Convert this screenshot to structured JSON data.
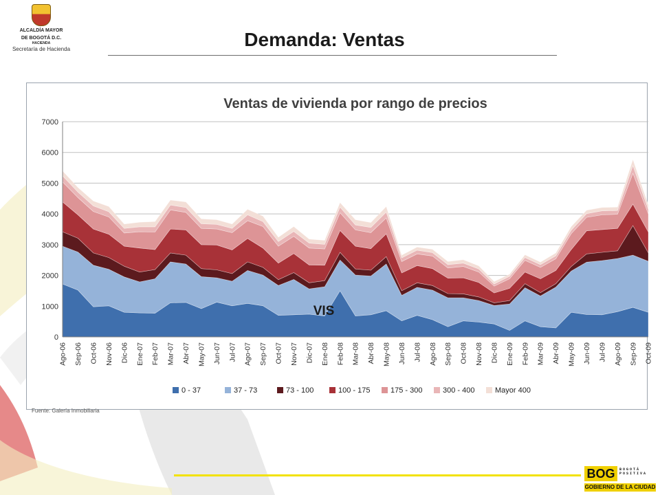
{
  "header": {
    "logo": {
      "line1": "ALCALDÍA MAYOR",
      "line2": "DE BOGOTÁ D.C.",
      "line3": "HACIENDA",
      "line4": "Secretaría de Hacienda"
    },
    "title": "Demanda: Ventas"
  },
  "footer": {
    "source": "Fuente: Galería Inmobiliaria",
    "brand_main": "BOG",
    "brand_side": "BOGOTÁ POSITIVA",
    "brand_sub": "GOBIERNO DE LA CIUDAD"
  },
  "colors": {
    "title_text": "#1a1a1a",
    "accent_yellow": "#f2e200"
  },
  "chart_data": {
    "type": "area",
    "stacked": true,
    "title": "Ventas de vivienda por rango de precios",
    "annotation": "VIS",
    "ylim": [
      0,
      7000
    ],
    "yticks": [
      0,
      1000,
      2000,
      3000,
      4000,
      5000,
      6000,
      7000
    ],
    "grid": true,
    "legend_position": "bottom",
    "categories": [
      "Ago-06",
      "Sep-06",
      "Oct-06",
      "Nov-06",
      "Dic-06",
      "Ene-07",
      "Feb-07",
      "Mar-07",
      "Abr-07",
      "May-07",
      "Jun-07",
      "Jul-07",
      "Ago-07",
      "Sep-07",
      "Oct-07",
      "Nov-07",
      "Dic-07",
      "Ene-08",
      "Feb-08",
      "Mar-08",
      "Abr-08",
      "May-08",
      "Jun-08",
      "Jul-08",
      "Ago-08",
      "Sep-08",
      "Oct-08",
      "Nov-08",
      "Dic-08",
      "Ene-09",
      "Feb-09",
      "Mar-09",
      "Abr-09",
      "May-09",
      "Jun-09",
      "Jul-09",
      "Ago-09",
      "Sep-09",
      "Oct-09"
    ],
    "x_tick_indices": [
      0,
      1,
      2,
      3,
      4,
      5,
      6,
      7,
      8,
      9,
      10,
      11,
      12,
      13,
      14,
      15,
      16,
      17,
      18,
      19,
      20,
      21,
      22,
      23,
      24,
      25,
      26,
      27,
      28,
      29,
      30,
      31,
      32,
      33,
      34,
      35,
      36,
      37,
      38
    ],
    "series": [
      {
        "name": "0 - 37",
        "color": "#3f6fad",
        "values": [
          1720,
          1520,
          980,
          1010,
          800,
          780,
          770,
          1110,
          1120,
          920,
          1130,
          1010,
          1090,
          1010,
          700,
          720,
          740,
          680,
          1500,
          680,
          720,
          850,
          520,
          700,
          560,
          330,
          520,
          480,
          420,
          210,
          520,
          330,
          290,
          800,
          730,
          720,
          820,
          960,
          800
        ]
      },
      {
        "name": "37 - 73",
        "color": "#95b3d9",
        "values": [
          1230,
          1240,
          1350,
          1190,
          1150,
          1010,
          1120,
          1330,
          1250,
          1040,
          790,
          800,
          1070,
          1000,
          970,
          1150,
          820,
          950,
          1000,
          1330,
          1260,
          1520,
          830,
          910,
          960,
          940,
          750,
          700,
          600,
          860,
          1080,
          1000,
          1330,
          1340,
          1700,
          1760,
          1730,
          1700,
          1660
        ]
      },
      {
        "name": "73 - 100",
        "color": "#5c1a1e",
        "values": [
          470,
          450,
          400,
          380,
          350,
          320,
          300,
          290,
          290,
          260,
          260,
          250,
          280,
          250,
          190,
          220,
          200,
          200,
          250,
          200,
          190,
          240,
          150,
          150,
          150,
          140,
          130,
          120,
          90,
          110,
          130,
          110,
          110,
          150,
          270,
          270,
          250,
          960,
          270
        ]
      },
      {
        "name": "100 - 175",
        "color": "#a83238",
        "values": [
          970,
          760,
          780,
          760,
          650,
          780,
          650,
          780,
          820,
          780,
          810,
          770,
          760,
          630,
          540,
          620,
          580,
          500,
          710,
          740,
          700,
          740,
          580,
          560,
          550,
          500,
          520,
          470,
          320,
          400,
          380,
          450,
          430,
          550,
          750,
          740,
          730,
          700,
          680
        ]
      },
      {
        "name": "175 - 300",
        "color": "#dd9496",
        "values": [
          650,
          560,
          570,
          560,
          430,
          530,
          570,
          620,
          570,
          530,
          520,
          560,
          580,
          700,
          550,
          560,
          550,
          530,
          580,
          530,
          520,
          520,
          370,
          380,
          410,
          330,
          370,
          340,
          220,
          310,
          380,
          370,
          380,
          520,
          440,
          480,
          460,
          1000,
          590
        ]
      },
      {
        "name": "300 - 400",
        "color": "#e9b6b7",
        "values": [
          200,
          180,
          180,
          170,
          150,
          160,
          170,
          160,
          160,
          150,
          150,
          140,
          190,
          160,
          150,
          160,
          160,
          150,
          180,
          160,
          170,
          190,
          120,
          120,
          110,
          110,
          110,
          100,
          70,
          80,
          90,
          90,
          100,
          110,
          120,
          130,
          120,
          250,
          150
        ]
      },
      {
        "name": "Mayor 400",
        "color": "#f3dfd7",
        "values": [
          160,
          150,
          160,
          170,
          140,
          150,
          170,
          160,
          180,
          160,
          150,
          140,
          180,
          180,
          140,
          160,
          130,
          130,
          150,
          170,
          160,
          180,
          90,
          100,
          110,
          100,
          110,
          100,
          80,
          70,
          90,
          80,
          90,
          120,
          110,
          110,
          110,
          200,
          140
        ]
      }
    ]
  }
}
